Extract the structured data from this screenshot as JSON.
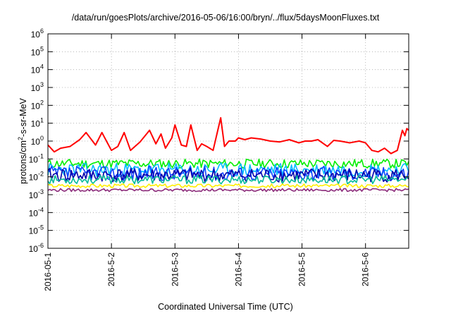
{
  "chart_data": {
    "type": "line",
    "title": "/data/run/goesPlots/archive/2016-05-06/16:00/bryn/../flux/5daysMoonFluxes.txt",
    "xlabel": "Coordinated Universal Time (UTC)",
    "ylabel": "protons/cm2-s-sr-MeV",
    "ylabel_parts": {
      "pre": "protons/cm",
      "sup": "2",
      "post": "-s-sr-MeV"
    },
    "yscale": "log",
    "ylim": [
      1e-06,
      1000000.0
    ],
    "y_ticks": [
      {
        "base": "10",
        "exp": "-6"
      },
      {
        "base": "10",
        "exp": "-5"
      },
      {
        "base": "10",
        "exp": "-4"
      },
      {
        "base": "10",
        "exp": "-3"
      },
      {
        "base": "10",
        "exp": "-2"
      },
      {
        "base": "10",
        "exp": "-1"
      },
      {
        "base": "10",
        "exp": "0"
      },
      {
        "base": "10",
        "exp": "1"
      },
      {
        "base": "10",
        "exp": "2"
      },
      {
        "base": "10",
        "exp": "3"
      },
      {
        "base": "10",
        "exp": "4"
      },
      {
        "base": "10",
        "exp": "5"
      },
      {
        "base": "10",
        "exp": "6"
      }
    ],
    "x_unit": "days after 2016-05-01 00:00 UTC",
    "xlim": [
      0,
      5.68
    ],
    "x_ticks": [
      "2016-05-1",
      "2016-5-2",
      "2016-5-3",
      "2016-5-4",
      "2016-5-5",
      "2016-5-6"
    ],
    "grid": true,
    "legend": "none",
    "series": [
      {
        "color": "#ff0000",
        "x": [
          0,
          0.1,
          0.2,
          0.35,
          0.5,
          0.6,
          0.75,
          0.85,
          1.0,
          1.1,
          1.2,
          1.3,
          1.45,
          1.6,
          1.7,
          1.78,
          1.85,
          1.95,
          2.0,
          2.1,
          2.18,
          2.25,
          2.35,
          2.42,
          2.5,
          2.6,
          2.72,
          2.78,
          2.85,
          2.95,
          3.0,
          3.1,
          3.2,
          3.35,
          3.5,
          3.65,
          3.8,
          3.95,
          4.05,
          4.15,
          4.25,
          4.4,
          4.5,
          4.6,
          4.75,
          4.9,
          5.0,
          5.1,
          5.2,
          5.3,
          5.4,
          5.5,
          5.58,
          5.62,
          5.65,
          5.68
        ],
        "values": [
          0.6,
          0.25,
          0.4,
          0.5,
          1.2,
          3.0,
          0.6,
          3.0,
          0.3,
          0.5,
          3.0,
          0.3,
          0.9,
          4.0,
          0.7,
          2.5,
          0.4,
          1.5,
          8.0,
          0.6,
          0.5,
          8.0,
          0.3,
          0.7,
          0.5,
          0.3,
          20.0,
          0.5,
          1.0,
          1.0,
          1.5,
          1.2,
          1.5,
          1.3,
          1.0,
          0.9,
          1.2,
          0.8,
          1.0,
          1.0,
          1.2,
          0.5,
          1.1,
          1.0,
          0.8,
          1.0,
          0.8,
          0.3,
          0.25,
          0.4,
          0.2,
          0.3,
          4.0,
          2.0,
          5.0,
          4.0
        ]
      },
      {
        "color": "#00ee00",
        "values_range": [
          0.03,
          0.1
        ],
        "seed": 11
      },
      {
        "color": "#00bbff",
        "values_range": [
          0.01,
          0.06
        ],
        "seed": 23
      },
      {
        "color": "#1040ff",
        "values_range": [
          0.006,
          0.04
        ],
        "seed": 37
      },
      {
        "color": "#0000aa",
        "values_range": [
          0.005,
          0.03
        ],
        "seed": 41
      },
      {
        "color": "#00bb99",
        "values_range": [
          0.004,
          0.012
        ],
        "seed": 53
      },
      {
        "color": "#ffee00",
        "values_range": [
          0.0025,
          0.004
        ],
        "seed": 67
      },
      {
        "color": "#8b2b7a",
        "values_range": [
          0.0015,
          0.0022
        ],
        "seed": 79
      }
    ]
  }
}
